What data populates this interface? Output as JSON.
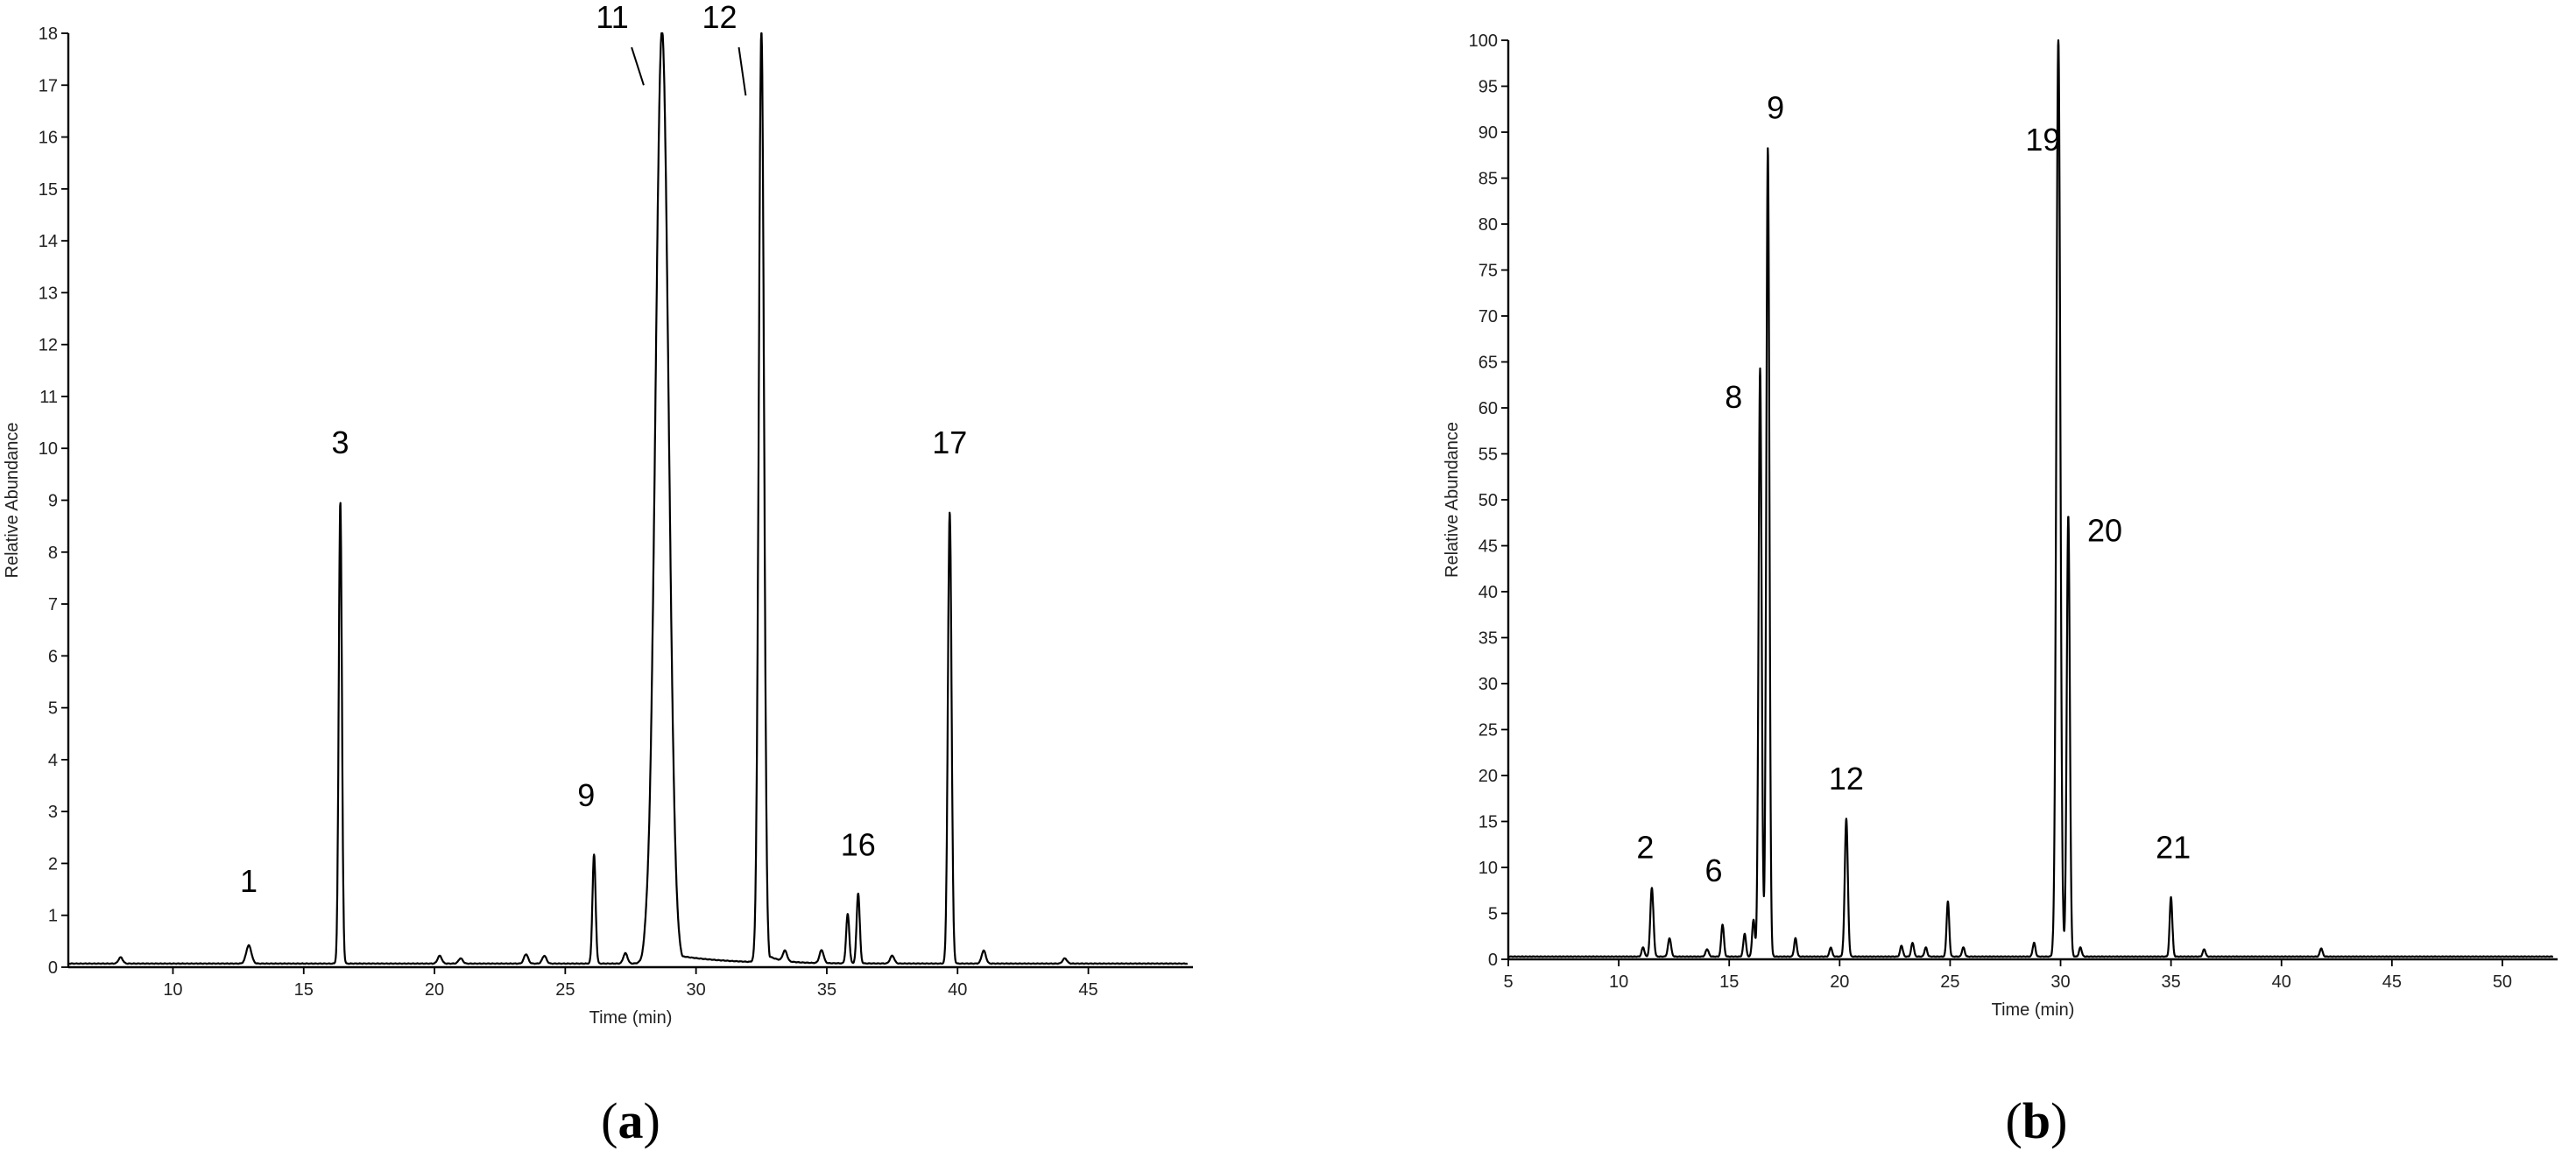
{
  "panels": {
    "a": {
      "label": "(a)",
      "label_letter": "a"
    },
    "b": {
      "label": "(b)",
      "label_letter": "b"
    }
  },
  "colors": {
    "trace": "#000000",
    "background": "#ffffff"
  },
  "chart_data": [
    {
      "type": "line",
      "id": "a",
      "xlabel": "Time (min)",
      "ylabel": "Relative Abundance",
      "xlim": [
        6.0,
        49.0
      ],
      "ylim": [
        0,
        18
      ],
      "x_ticks": [
        10,
        15,
        20,
        25,
        30,
        35,
        40,
        45
      ],
      "y_ticks": [
        0,
        1,
        2,
        3,
        4,
        5,
        6,
        7,
        8,
        9,
        10,
        11,
        12,
        13,
        14,
        15,
        16,
        17,
        18
      ],
      "grid": false,
      "baseline": 0.07,
      "peaks": [
        {
          "time": 8.0,
          "height": 0.12,
          "width": 0.08
        },
        {
          "time": 12.9,
          "height": 0.35,
          "width": 0.1
        },
        {
          "time": 16.4,
          "height": 8.9,
          "width": 0.06
        },
        {
          "time": 20.2,
          "height": 0.15,
          "width": 0.08
        },
        {
          "time": 21.0,
          "height": 0.1,
          "width": 0.08
        },
        {
          "time": 23.5,
          "height": 0.18,
          "width": 0.08
        },
        {
          "time": 24.2,
          "height": 0.15,
          "width": 0.08
        },
        {
          "time": 26.1,
          "height": 2.1,
          "width": 0.06
        },
        {
          "time": 27.3,
          "height": 0.2,
          "width": 0.08
        },
        {
          "time": 28.1,
          "height": 0.18,
          "width": 0.08
        },
        {
          "time": 28.7,
          "height": 18,
          "width": 0.25,
          "tail": 1.8
        },
        {
          "time": 32.5,
          "height": 18,
          "width": 0.1,
          "tail": 0.5
        },
        {
          "time": 33.4,
          "height": 0.2,
          "width": 0.08
        },
        {
          "time": 34.8,
          "height": 0.25,
          "width": 0.08
        },
        {
          "time": 35.8,
          "height": 0.95,
          "width": 0.06
        },
        {
          "time": 36.2,
          "height": 1.35,
          "width": 0.06
        },
        {
          "time": 37.5,
          "height": 0.15,
          "width": 0.08
        },
        {
          "time": 39.7,
          "height": 8.7,
          "width": 0.07
        },
        {
          "time": 41.0,
          "height": 0.25,
          "width": 0.08
        },
        {
          "time": 44.1,
          "height": 0.1,
          "width": 0.08
        }
      ],
      "annotations": [
        {
          "text": "1",
          "x": 12.9,
          "y": 1.45
        },
        {
          "text": "3",
          "x": 16.4,
          "y": 9.9
        },
        {
          "text": "9",
          "x": 25.8,
          "y": 3.1
        },
        {
          "text": "11",
          "x": 26.8,
          "y": 18.1,
          "leader_to": [
            28.0,
            17.0
          ]
        },
        {
          "text": "12",
          "x": 30.9,
          "y": 18.1,
          "leader_to": [
            31.9,
            16.8
          ]
        },
        {
          "text": "16",
          "x": 36.2,
          "y": 2.15
        },
        {
          "text": "17",
          "x": 39.7,
          "y": 9.9
        }
      ]
    },
    {
      "type": "line",
      "id": "b",
      "xlabel": "Time (min)",
      "ylabel": "Relative Abundance",
      "xlim": [
        5.0,
        52.5
      ],
      "ylim": [
        0,
        100
      ],
      "x_ticks": [
        5,
        10,
        15,
        20,
        25,
        30,
        35,
        40,
        45,
        50
      ],
      "y_ticks": [
        0,
        5,
        10,
        15,
        20,
        25,
        30,
        35,
        40,
        45,
        50,
        55,
        60,
        65,
        70,
        75,
        80,
        85,
        90,
        95,
        100
      ],
      "grid": false,
      "baseline": 0.3,
      "peaks": [
        {
          "time": 11.1,
          "height": 1.0,
          "width": 0.06
        },
        {
          "time": 11.5,
          "height": 7.5,
          "width": 0.07
        },
        {
          "time": 12.3,
          "height": 2.0,
          "width": 0.07
        },
        {
          "time": 14.0,
          "height": 0.8,
          "width": 0.07
        },
        {
          "time": 14.7,
          "height": 3.5,
          "width": 0.06
        },
        {
          "time": 15.7,
          "height": 2.5,
          "width": 0.06
        },
        {
          "time": 16.1,
          "height": 4.0,
          "width": 0.06
        },
        {
          "time": 16.4,
          "height": 64,
          "width": 0.07
        },
        {
          "time": 16.75,
          "height": 88,
          "width": 0.07
        },
        {
          "time": 18.0,
          "height": 2.0,
          "width": 0.06
        },
        {
          "time": 19.6,
          "height": 1.0,
          "width": 0.06
        },
        {
          "time": 20.3,
          "height": 15,
          "width": 0.07
        },
        {
          "time": 22.8,
          "height": 1.2,
          "width": 0.06
        },
        {
          "time": 23.3,
          "height": 1.5,
          "width": 0.06
        },
        {
          "time": 23.9,
          "height": 1.0,
          "width": 0.06
        },
        {
          "time": 24.9,
          "height": 6,
          "width": 0.06
        },
        {
          "time": 25.6,
          "height": 1.0,
          "width": 0.06
        },
        {
          "time": 28.8,
          "height": 1.5,
          "width": 0.06
        },
        {
          "time": 29.9,
          "height": 100,
          "width": 0.09
        },
        {
          "time": 30.35,
          "height": 48,
          "width": 0.07
        },
        {
          "time": 30.9,
          "height": 1.0,
          "width": 0.06
        },
        {
          "time": 35.0,
          "height": 6.5,
          "width": 0.06
        },
        {
          "time": 36.5,
          "height": 0.8,
          "width": 0.06
        },
        {
          "time": 41.8,
          "height": 0.9,
          "width": 0.06
        }
      ],
      "annotations": [
        {
          "text": "2",
          "x": 11.2,
          "y": 11
        },
        {
          "text": "6",
          "x": 14.3,
          "y": 8.5
        },
        {
          "text": "8",
          "x": 15.2,
          "y": 60
        },
        {
          "text": "9",
          "x": 17.1,
          "y": 91.5
        },
        {
          "text": "12",
          "x": 20.3,
          "y": 18.5
        },
        {
          "text": "19",
          "x": 29.2,
          "y": 88
        },
        {
          "text": "20",
          "x": 32.0,
          "y": 45.5
        },
        {
          "text": "21",
          "x": 35.1,
          "y": 11
        }
      ]
    }
  ]
}
